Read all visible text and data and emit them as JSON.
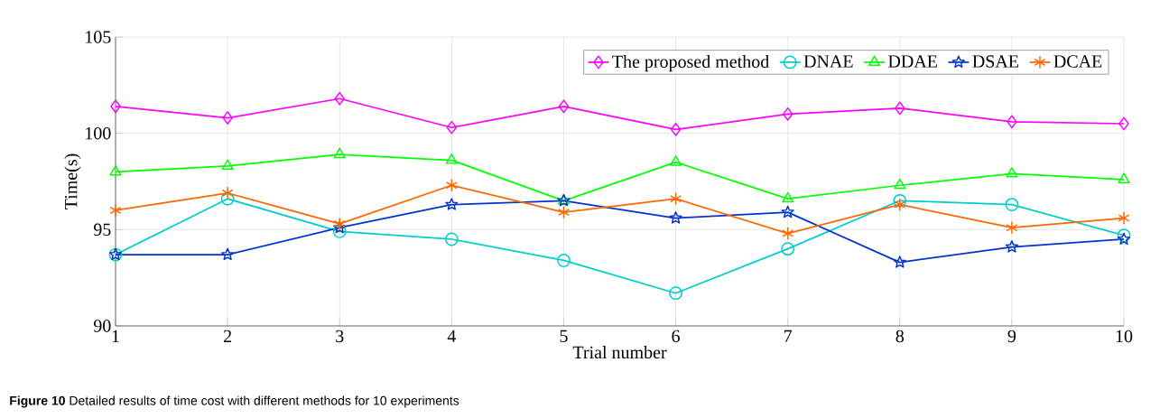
{
  "chart_data": {
    "type": "line",
    "xlabel": "Trial number",
    "ylabel": "Time(s)",
    "x": [
      1,
      2,
      3,
      4,
      5,
      6,
      7,
      8,
      9,
      10
    ],
    "xlim": [
      1,
      10
    ],
    "xticks": [
      1,
      2,
      3,
      4,
      5,
      6,
      7,
      8,
      9,
      10
    ],
    "ylim": [
      90,
      105
    ],
    "yticks": [
      90,
      95,
      100,
      105
    ],
    "grid": true,
    "legend": "top right",
    "line_style": "solid",
    "annotations": [
      "**Figure 10**  Detailed results of time cost with different methods for 10 experiments"
    ],
    "series": [
      {
        "name": "The proposed method",
        "color": "#ff00ff",
        "marker": "diamond",
        "values": [
          101.4,
          100.8,
          101.8,
          100.3,
          101.4,
          100.2,
          101.0,
          101.3,
          100.6,
          100.5
        ]
      },
      {
        "name": "DNAE",
        "color": "#00cccc",
        "marker": "circle",
        "values": [
          93.7,
          96.6,
          94.9,
          94.5,
          93.4,
          91.7,
          94.0,
          96.5,
          96.3,
          94.7
        ]
      },
      {
        "name": "DDAE",
        "color": "#00ff00",
        "marker": "triangle",
        "values": [
          98.0,
          98.3,
          98.9,
          98.6,
          96.5,
          98.5,
          96.6,
          97.3,
          97.9,
          97.6
        ]
      },
      {
        "name": "DSAE",
        "color": "#0033cc",
        "marker": "star",
        "values": [
          93.7,
          93.7,
          95.1,
          96.3,
          96.5,
          95.6,
          95.9,
          93.3,
          94.1,
          94.5
        ]
      },
      {
        "name": "DCAE",
        "color": "#ff6600",
        "marker": "cross",
        "values": [
          96.0,
          96.9,
          95.3,
          97.3,
          95.9,
          96.6,
          94.8,
          96.3,
          95.1,
          95.6
        ]
      }
    ]
  }
}
